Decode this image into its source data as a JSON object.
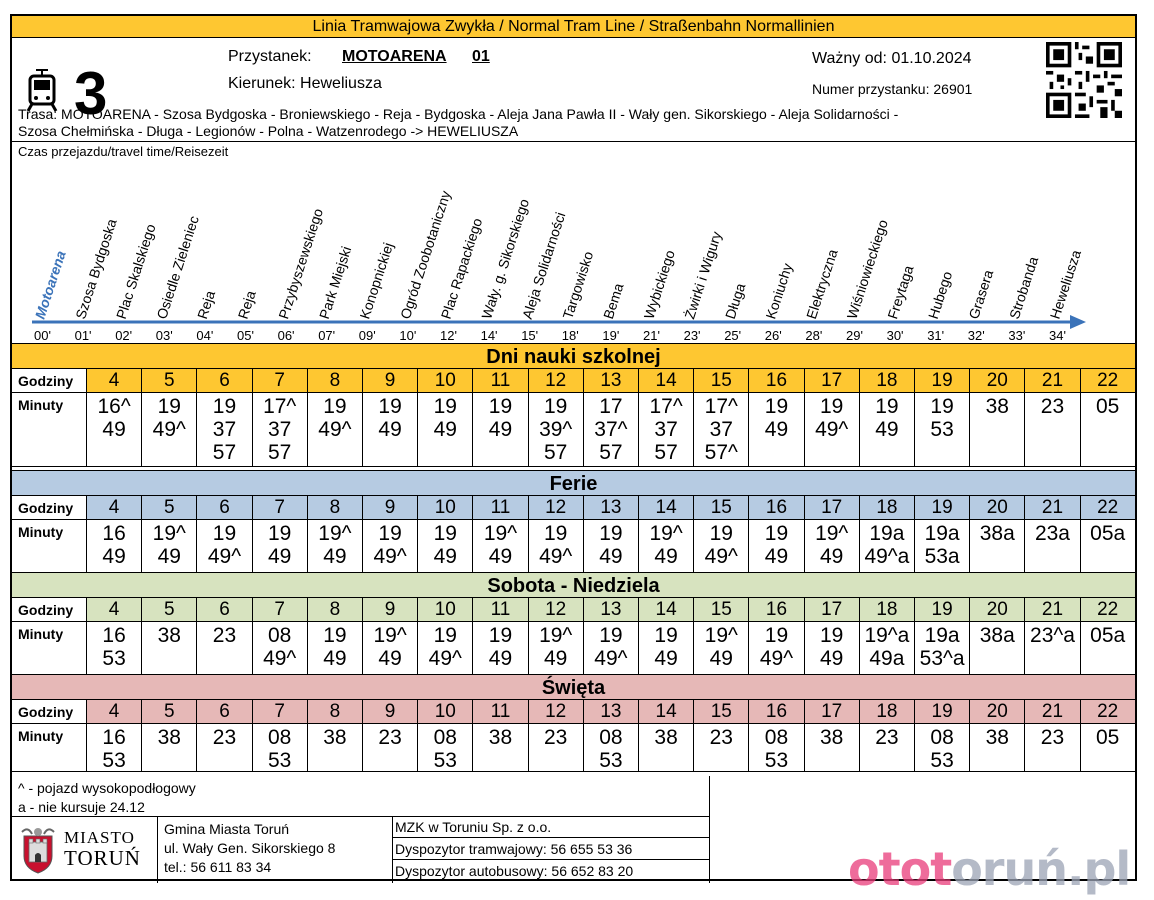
{
  "header": {
    "title": "Linia Tramwajowa Zwykła  / Normal Tram Line / Straßenbahn  Normallinien",
    "line": "3",
    "stop_label": "Przystanek:",
    "stop_name": "MOTOARENA",
    "stop_number": "01",
    "direction": "Kierunek: Heweliusza",
    "valid_from": "Ważny od: 01.10.2024",
    "stop_id": "Numer przystanku: 26901",
    "route_line1": "Trasa: MOTOARENA - Szosa Bydgoska - Broniewskiego - Reja - Bydgoska - Aleja Jana Pawła II - Wały gen. Sikorskiego - Aleja Solidarności -",
    "route_line2": "Szosa Chełmińska - Długa - Legionów - Polna - Watzenrodego -> HEWELIUSZA"
  },
  "travel": {
    "label": "Czas przejazdu/travel time/Reisezeit",
    "stops": [
      {
        "name": "Motoarena",
        "time": "00'"
      },
      {
        "name": "Szosa Bydgoska",
        "time": "01'"
      },
      {
        "name": "Plac Skalskiego",
        "time": "02'"
      },
      {
        "name": "Osiedle Zieleniec",
        "time": "03'"
      },
      {
        "name": "Reja",
        "time": "04'"
      },
      {
        "name": "Reja",
        "time": "05'"
      },
      {
        "name": "Przybyszewskiego",
        "time": "06'"
      },
      {
        "name": "Park Miejski",
        "time": "07'"
      },
      {
        "name": "Konopnickiej",
        "time": "09'"
      },
      {
        "name": "Ogród Zoobotaniczny",
        "time": "10'"
      },
      {
        "name": "Plac Rapackiego",
        "time": "12'"
      },
      {
        "name": "Wały. g. Sikorskiego",
        "time": "14'"
      },
      {
        "name": "Aleja Solidarności",
        "time": "15'"
      },
      {
        "name": "Targowisko",
        "time": "18'"
      },
      {
        "name": "Bema",
        "time": "19'"
      },
      {
        "name": "Wybickiego",
        "time": "21'"
      },
      {
        "name": "Żwirki i Wigury",
        "time": "23'"
      },
      {
        "name": "Długa",
        "time": "25'"
      },
      {
        "name": "Koniuchy",
        "time": "26'"
      },
      {
        "name": "Elektryczna",
        "time": "28'"
      },
      {
        "name": "Wiśniowieckiego",
        "time": "29'"
      },
      {
        "name": "Freytaga",
        "time": "30'"
      },
      {
        "name": "Hubego",
        "time": "31'"
      },
      {
        "name": "Grasera",
        "time": "32'"
      },
      {
        "name": "Strobanda",
        "time": "33'"
      },
      {
        "name": "Heweliusza",
        "time": "34'"
      }
    ]
  },
  "labels": {
    "hours": "Godziny",
    "minutes": "Minuty"
  },
  "hours": [
    "4",
    "5",
    "6",
    "7",
    "8",
    "9",
    "10",
    "11",
    "12",
    "13",
    "14",
    "15",
    "16",
    "17",
    "18",
    "19",
    "20",
    "21",
    "22"
  ],
  "sections": [
    {
      "title": "Dni nauki szkolnej",
      "color": "#FEC731",
      "minutes": [
        [
          "16^",
          "49"
        ],
        [
          "19",
          "49^"
        ],
        [
          "19",
          "37",
          "57"
        ],
        [
          "17^",
          "37",
          "57"
        ],
        [
          "19",
          "49^"
        ],
        [
          "19",
          "49"
        ],
        [
          "19",
          "49"
        ],
        [
          "19",
          "49"
        ],
        [
          "19",
          "39^",
          "57"
        ],
        [
          "17",
          "37^",
          "57"
        ],
        [
          "17^",
          "37",
          "57"
        ],
        [
          "17^",
          "37",
          "57^"
        ],
        [
          "19",
          "49"
        ],
        [
          "19",
          "49^"
        ],
        [
          "19",
          "49"
        ],
        [
          "19",
          "53"
        ],
        [
          "38"
        ],
        [
          "23"
        ],
        [
          "05"
        ]
      ]
    },
    {
      "title": "Ferie",
      "color": "#B6CBE2",
      "minutes": [
        [
          "16",
          "49"
        ],
        [
          "19^",
          "49"
        ],
        [
          "19",
          "49^"
        ],
        [
          "19",
          "49"
        ],
        [
          "19^",
          "49"
        ],
        [
          "19",
          "49^"
        ],
        [
          "19",
          "49"
        ],
        [
          "19^",
          "49"
        ],
        [
          "19",
          "49^"
        ],
        [
          "19",
          "49"
        ],
        [
          "19^",
          "49"
        ],
        [
          "19",
          "49^"
        ],
        [
          "19",
          "49"
        ],
        [
          "19^",
          "49"
        ],
        [
          "19a",
          "49^a"
        ],
        [
          "19a",
          "53a"
        ],
        [
          "38a"
        ],
        [
          "23a"
        ],
        [
          "05a"
        ]
      ]
    },
    {
      "title": "Sobota - Niedziela",
      "color": "#D7E3BF",
      "minutes": [
        [
          "16",
          "53"
        ],
        [
          "38"
        ],
        [
          "23"
        ],
        [
          "08",
          "49^"
        ],
        [
          "19",
          "49"
        ],
        [
          "19^",
          "49"
        ],
        [
          "19",
          "49^"
        ],
        [
          "19",
          "49"
        ],
        [
          "19^",
          "49"
        ],
        [
          "19",
          "49^"
        ],
        [
          "19",
          "49"
        ],
        [
          "19^",
          "49"
        ],
        [
          "19",
          "49^"
        ],
        [
          "19",
          "49"
        ],
        [
          "19^a",
          "49a"
        ],
        [
          "19a",
          "53^a"
        ],
        [
          "38a"
        ],
        [
          "23^a"
        ],
        [
          "05a"
        ]
      ]
    },
    {
      "title": "Święta",
      "color": "#E6B8B7",
      "minutes": [
        [
          "16",
          "53"
        ],
        [
          "38"
        ],
        [
          "23"
        ],
        [
          "08",
          "53"
        ],
        [
          "38"
        ],
        [
          "23"
        ],
        [
          "08",
          "53"
        ],
        [
          "38"
        ],
        [
          "23"
        ],
        [
          "08",
          "53"
        ],
        [
          "38"
        ],
        [
          "23"
        ],
        [
          "08",
          "53"
        ],
        [
          "38"
        ],
        [
          "23"
        ],
        [
          "08",
          "53"
        ],
        [
          "38"
        ],
        [
          "23"
        ],
        [
          "05"
        ]
      ]
    }
  ],
  "legend": {
    "line1": "^ - pojazd wysokopodłogowy",
    "line2": "a - nie kursuje 24.12"
  },
  "footer": {
    "logo_line1": "MIASTO",
    "logo_line2": "TORUŃ",
    "gmina_line1": "Gmina Miasta Toruń",
    "gmina_line2": "ul. Wały Gen. Sikorskiego 8",
    "gmina_line3": "tel.: 56 611 83 34",
    "mzk_line1": "MZK w Toruniu Sp. z o.o.",
    "mzk_line2": "Dyspozytor tramwajowy: 56 655 53 36",
    "mzk_line3": "Dyspozytor autobusowy: 56 652 83 20",
    "watermark_a": "otot",
    "watermark_b": "oruń.pl"
  }
}
